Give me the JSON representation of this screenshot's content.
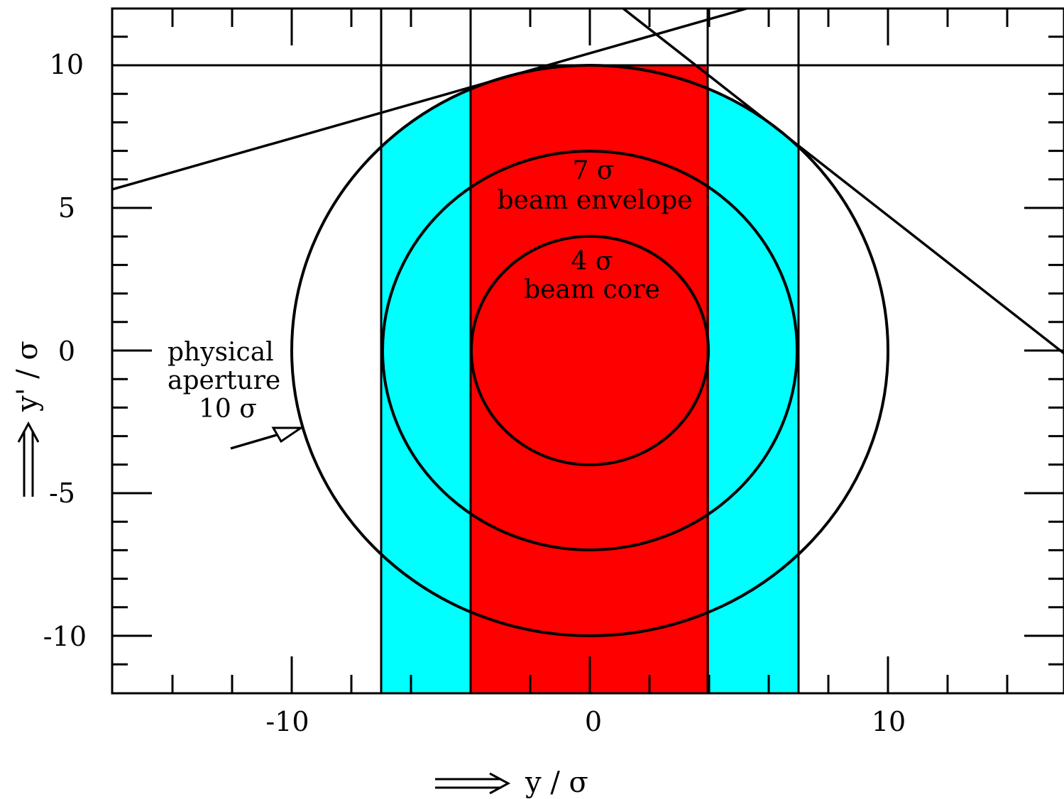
{
  "diagram": {
    "x_axis": {
      "ticks": [
        {
          "value": -10,
          "label": "-10"
        },
        {
          "value": 0,
          "label": "0"
        },
        {
          "value": 10,
          "label": "10"
        }
      ],
      "title": "y / σ"
    },
    "y_axis": {
      "ticks": [
        {
          "value": 10,
          "label": "10"
        },
        {
          "value": 5,
          "label": "5"
        },
        {
          "value": 0,
          "label": "0"
        },
        {
          "value": -5,
          "label": "-5"
        },
        {
          "value": -10,
          "label": "-10"
        }
      ],
      "title": "y' / σ"
    },
    "circles": [
      {
        "radius": 10,
        "name": "physical-aperture"
      },
      {
        "radius": 7,
        "name": "beam-envelope"
      },
      {
        "radius": 4,
        "name": "beam-core"
      }
    ],
    "bands": [
      {
        "name": "outer-band",
        "y_from": -7,
        "y_to": 7,
        "color": "#00ffff"
      },
      {
        "name": "inner-band",
        "y_from": -4,
        "y_to": 4,
        "color": "#ff0000"
      }
    ],
    "labels": {
      "core_line1": "4 σ",
      "core_line2": "beam core",
      "envelope_line1": "7 σ",
      "envelope_line2": "beam envelope",
      "aperture_line1": "physical",
      "aperture_line2": "aperture",
      "aperture_line3": "10 σ"
    },
    "colors": {
      "cyan": "#00ffff",
      "red": "#ff0000",
      "line": "#000000"
    }
  }
}
